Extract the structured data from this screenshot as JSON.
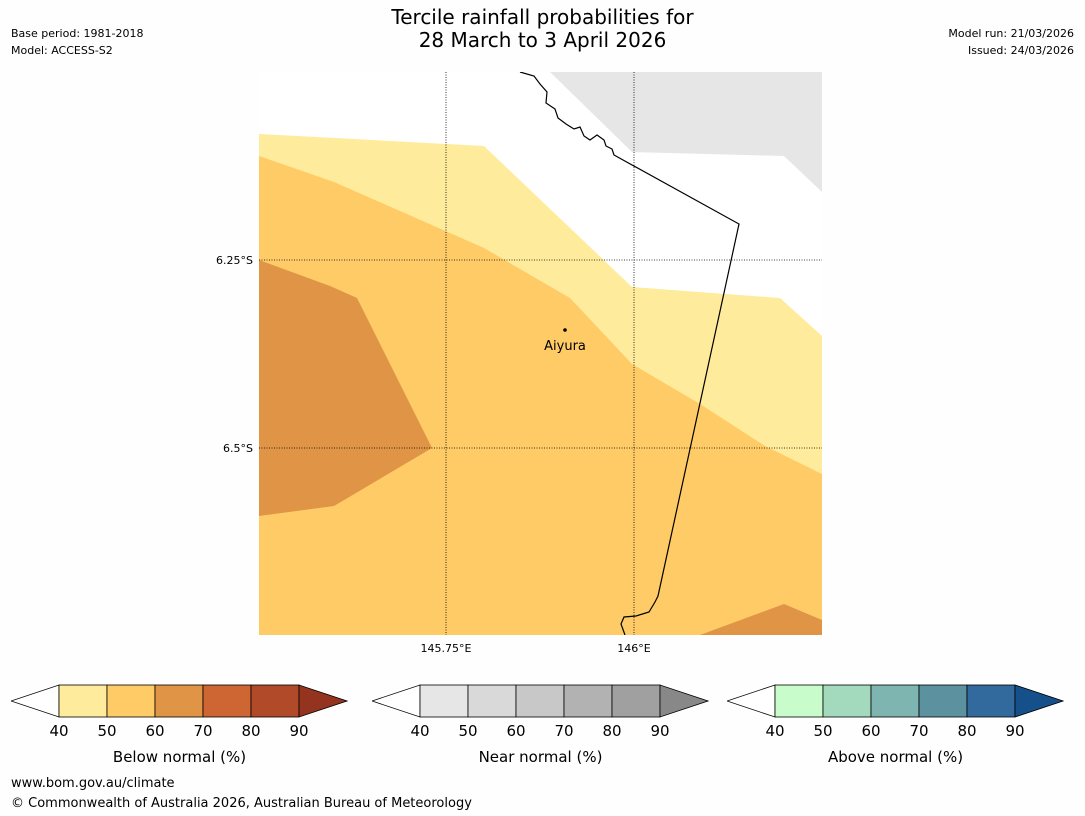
{
  "header": {
    "title_line1": "Tercile rainfall probabilities for",
    "title_line2": "28 March to 3 April 2026",
    "base_period": "Base period: 1981-2018",
    "model": "Model: ACCESS-S2",
    "model_run": "Model run: 21/03/2026",
    "issued": "Issued: 24/03/2026"
  },
  "map": {
    "lat_labels": [
      "6.25°S",
      "6.5°S"
    ],
    "lon_labels": [
      "145.75°E",
      "146°E"
    ],
    "location": "Aiyura",
    "colors": {
      "below_40_50": "#ffeb9c",
      "below_50_60": "#fecb67",
      "below_60_70": "#e09446",
      "near_40_50": "#e6e6e6",
      "no_data": "#ffffff"
    }
  },
  "colorbars": [
    {
      "label": "Below normal (%)",
      "ticks": [
        "40",
        "50",
        "60",
        "70",
        "80",
        "90"
      ],
      "colors": [
        "#ffeb9c",
        "#fecb67",
        "#e09446",
        "#cd6633",
        "#b04a28",
        "#94341e"
      ]
    },
    {
      "label": "Near normal (%)",
      "ticks": [
        "40",
        "50",
        "60",
        "70",
        "80",
        "90"
      ],
      "colors": [
        "#e6e6e6",
        "#d9d9d9",
        "#c8c8c8",
        "#b2b2b2",
        "#a0a0a0",
        "#888888"
      ]
    },
    {
      "label": "Above normal (%)",
      "ticks": [
        "40",
        "50",
        "60",
        "70",
        "80",
        "90"
      ],
      "colors": [
        "#c8fdcb",
        "#a3d9bc",
        "#7fb5b0",
        "#5c92a0",
        "#336a9d",
        "#15508a"
      ]
    }
  ],
  "footer": {
    "url": "www.bom.gov.au/climate",
    "copyright": "© Commonwealth of Australia 2026, Australian Bureau of Meteorology"
  }
}
